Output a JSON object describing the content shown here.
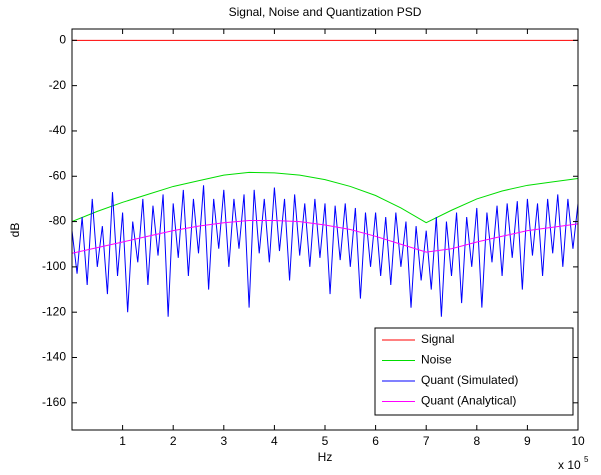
{
  "chart_data": {
    "type": "line",
    "title": "Signal, Noise and Quantization PSD",
    "xlabel": "Hz",
    "ylabel": "dB",
    "x_exponent_base": "x 10",
    "x_exponent": "5",
    "xlim": [
      0,
      10
    ],
    "ylim": [
      -172,
      5
    ],
    "xticks": [
      1,
      2,
      3,
      4,
      5,
      6,
      7,
      8,
      9,
      10
    ],
    "yticks": [
      0,
      -20,
      -40,
      -60,
      -80,
      -100,
      -120,
      -140,
      -160
    ],
    "grid": false,
    "legend": "lower right",
    "series": [
      {
        "name": "Signal",
        "color": "#ff0000",
        "x": [
          0,
          10
        ],
        "values": [
          0,
          0
        ]
      },
      {
        "name": "Noise",
        "color": "#00dd00",
        "x": [
          0,
          0.5,
          1,
          1.5,
          2,
          2.5,
          3,
          3.5,
          4,
          4.5,
          5,
          5.5,
          6,
          6.5,
          7,
          7.5,
          8,
          8.5,
          9,
          9.5,
          10
        ],
        "values": [
          -80,
          -75.5,
          -71.5,
          -68,
          -64.5,
          -62,
          -59.5,
          -58.3,
          -58.5,
          -59.5,
          -61.5,
          -64.5,
          -68.5,
          -74,
          -80.5,
          -75,
          -70,
          -66.5,
          -64,
          -62.5,
          -61
        ]
      },
      {
        "name": "Quant (Simulated)",
        "color": "#0000ff",
        "x": [
          0,
          0.1,
          0.2,
          0.3,
          0.4,
          0.5,
          0.6,
          0.7,
          0.8,
          0.9,
          1,
          1.1,
          1.2,
          1.3,
          1.4,
          1.5,
          1.6,
          1.7,
          1.8,
          1.9,
          2,
          2.1,
          2.2,
          2.3,
          2.4,
          2.5,
          2.6,
          2.7,
          2.8,
          2.9,
          3,
          3.1,
          3.2,
          3.3,
          3.4,
          3.5,
          3.6,
          3.7,
          3.8,
          3.9,
          4,
          4.1,
          4.2,
          4.3,
          4.4,
          4.5,
          4.6,
          4.7,
          4.8,
          4.9,
          5,
          5.1,
          5.2,
          5.3,
          5.4,
          5.5,
          5.6,
          5.7,
          5.8,
          5.9,
          6,
          6.1,
          6.2,
          6.3,
          6.4,
          6.5,
          6.6,
          6.7,
          6.8,
          6.9,
          7,
          7.1,
          7.2,
          7.3,
          7.4,
          7.5,
          7.6,
          7.7,
          7.8,
          7.9,
          8,
          8.1,
          8.2,
          8.3,
          8.4,
          8.5,
          8.6,
          8.7,
          8.8,
          8.9,
          9,
          9.1,
          9.2,
          9.3,
          9.4,
          9.5,
          9.6,
          9.7,
          9.8,
          9.9,
          10
        ],
        "values": [
          -84,
          -103,
          -78,
          -108,
          -70,
          -100,
          -82,
          -112,
          -67,
          -104,
          -76,
          -120,
          -80,
          -98,
          -70,
          -108,
          -73,
          -95,
          -68,
          -122,
          -72,
          -96,
          -66,
          -104,
          -70,
          -94,
          -64,
          -110,
          -70,
          -92,
          -66,
          -100,
          -70,
          -92,
          -68,
          -118,
          -66,
          -94,
          -70,
          -98,
          -65,
          -93,
          -70,
          -106,
          -68,
          -95,
          -72,
          -100,
          -70,
          -96,
          -72,
          -112,
          -73,
          -97,
          -72,
          -100,
          -74,
          -114,
          -76,
          -100,
          -76,
          -104,
          -78,
          -108,
          -76,
          -100,
          -80,
          -118,
          -82,
          -106,
          -84,
          -110,
          -78,
          -122,
          -80,
          -104,
          -76,
          -116,
          -78,
          -100,
          -74,
          -118,
          -76,
          -98,
          -73,
          -104,
          -72,
          -96,
          -71,
          -110,
          -70,
          -95,
          -72,
          -104,
          -70,
          -94,
          -68,
          -100,
          -70,
          -92,
          -72
        ]
      },
      {
        "name": "Quant (Analytical)",
        "color": "#ff00ff",
        "x": [
          0,
          0.5,
          1,
          1.5,
          2,
          2.5,
          3,
          3.5,
          4,
          4.5,
          5,
          5.5,
          6,
          6.5,
          7,
          7.5,
          8,
          8.5,
          9,
          9.5,
          10
        ],
        "values": [
          -94,
          -91.5,
          -89,
          -86.5,
          -84,
          -82,
          -80.5,
          -79.5,
          -79.5,
          -80,
          -81.5,
          -83.5,
          -86.5,
          -90,
          -93.5,
          -92,
          -89,
          -86.5,
          -84,
          -82.5,
          -81
        ]
      }
    ]
  }
}
